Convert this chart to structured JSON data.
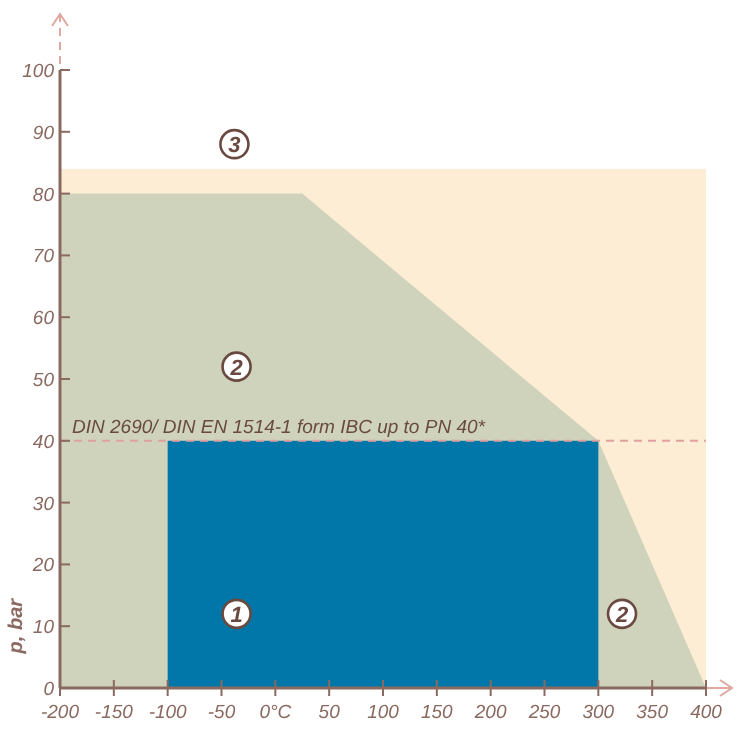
{
  "chart_data": {
    "type": "area",
    "ylabel": "p, bar",
    "xlim": [
      -200,
      400
    ],
    "ylim": [
      0,
      100
    ],
    "xticks": [
      -200,
      -150,
      -100,
      -50,
      {
        "value": 0,
        "label": "0°C"
      },
      50,
      100,
      150,
      200,
      250,
      300,
      350,
      400
    ],
    "yticks": [
      0,
      10,
      20,
      30,
      40,
      50,
      60,
      70,
      80,
      90,
      100
    ],
    "series": [
      {
        "x": [
          -200,
          25,
          300,
          400
        ],
        "values": [
          80,
          80,
          40,
          0
        ],
        "color": "#d0d3bb"
      },
      {
        "x": [
          -100,
          300
        ],
        "values": [
          40,
          40
        ],
        "color": "#0077a8"
      }
    ],
    "bands": [
      {
        "axis": "y",
        "from": 0,
        "to": 84,
        "color": "#fdedd5"
      }
    ],
    "ref_lines": [
      {
        "axis": "y",
        "value": 40,
        "label": "DIN 2690/ DIN EN 1514-1 form IBC up to PN 40*",
        "color": "#e0a0a0",
        "line_style": "dashed"
      }
    ],
    "annotations": [
      {
        "text": "3",
        "x": -38,
        "y": 88
      },
      {
        "text": "2",
        "x": -36,
        "y": 52
      },
      {
        "text": "1",
        "x": -36,
        "y": 12
      },
      {
        "text": "2",
        "x": 322,
        "y": 12
      }
    ],
    "grid": false
  }
}
